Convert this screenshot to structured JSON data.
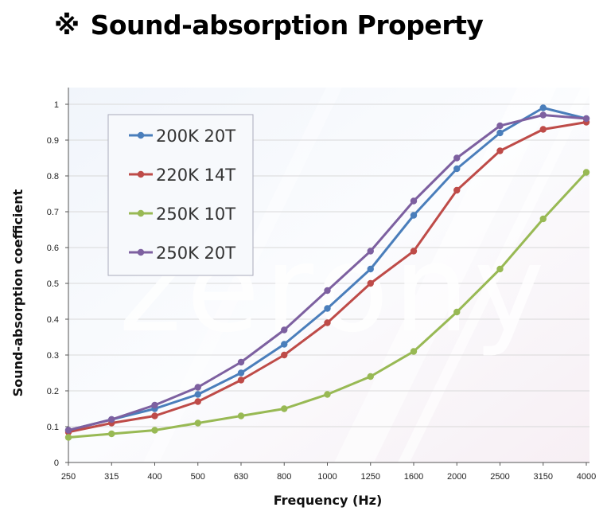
{
  "header": {
    "mark": "※",
    "title": "Sound-absorption Property"
  },
  "watermark_text": "zerony",
  "chart_data": {
    "type": "line",
    "title": "Sound-absorption Property",
    "xlabel": "Frequency (Hz)",
    "ylabel": "Sound-absorption coefficient",
    "categories": [
      "250",
      "315",
      "400",
      "500",
      "630",
      "800",
      "1000",
      "1250",
      "1600",
      "2000",
      "2500",
      "3150",
      "4000"
    ],
    "ylim": [
      0,
      1
    ],
    "yticks": [
      "0",
      "0.1",
      "0.2",
      "0.3",
      "0.4",
      "0.5",
      "0.6",
      "0.7",
      "0.8",
      "0.9",
      "1"
    ],
    "grid": true,
    "legend_position": "top-left",
    "series": [
      {
        "name": "200K 20T",
        "color": "#4a7ebb",
        "values": [
          0.09,
          0.12,
          0.15,
          0.19,
          0.25,
          0.33,
          0.43,
          0.54,
          0.69,
          0.82,
          0.92,
          0.99,
          0.96
        ]
      },
      {
        "name": "220K 14T",
        "color": "#be4b48",
        "values": [
          0.085,
          0.11,
          0.13,
          0.17,
          0.23,
          0.3,
          0.39,
          0.5,
          0.59,
          0.76,
          0.87,
          0.93,
          0.95
        ]
      },
      {
        "name": "250K 10T",
        "color": "#98b954",
        "values": [
          0.07,
          0.08,
          0.09,
          0.11,
          0.13,
          0.15,
          0.19,
          0.24,
          0.31,
          0.42,
          0.54,
          0.68,
          0.81
        ]
      },
      {
        "name": "250K 20T",
        "color": "#7d60a0",
        "values": [
          0.09,
          0.12,
          0.16,
          0.21,
          0.28,
          0.37,
          0.48,
          0.59,
          0.73,
          0.85,
          0.94,
          0.97,
          0.96
        ]
      }
    ]
  }
}
